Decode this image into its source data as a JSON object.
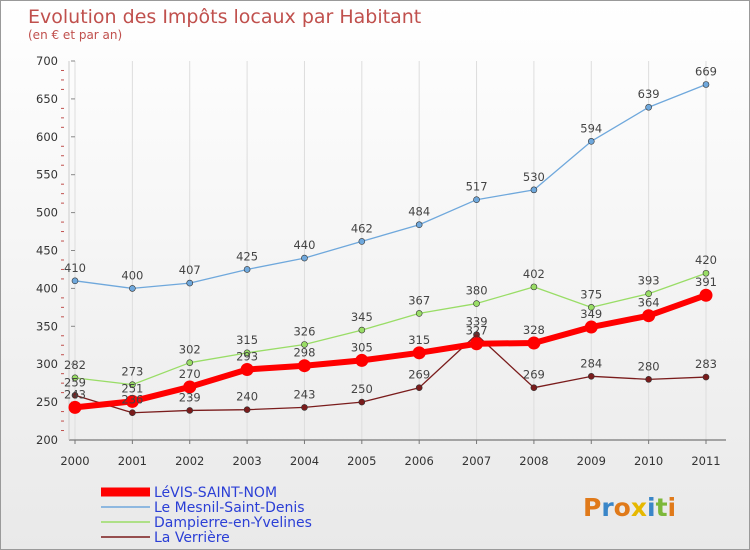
{
  "chart_data": {
    "type": "line",
    "title": "Evolution des Impôts locaux par Habitant",
    "subtitle": "(en € et par an)",
    "x": [
      "2000",
      "2001",
      "2002",
      "2003",
      "2004",
      "2005",
      "2006",
      "2007",
      "2008",
      "2009",
      "2010",
      "2011"
    ],
    "ylim": [
      200,
      700
    ],
    "yticks": [
      200,
      250,
      300,
      350,
      400,
      450,
      500,
      550,
      600,
      650,
      700
    ],
    "series": [
      {
        "name": "La Verrière",
        "color": "#7a1c1c",
        "values": [
          259,
          236,
          239,
          240,
          243,
          250,
          269,
          339,
          269,
          284,
          280,
          283
        ]
      },
      {
        "name": "Dampierre-en-Yvelines",
        "color": "#99dd66",
        "values": [
          282,
          273,
          302,
          315,
          326,
          345,
          367,
          380,
          402,
          375,
          393,
          420
        ]
      },
      {
        "name": "Le Mesnil-Saint-Denis",
        "color": "#6fa8dc",
        "values": [
          410,
          400,
          407,
          425,
          440,
          462,
          484,
          517,
          530,
          594,
          639,
          669
        ]
      },
      {
        "name": "LéVIS-SAINT-NOM",
        "color": "#ff0000",
        "values": [
          243,
          251,
          270,
          293,
          298,
          305,
          315,
          327,
          328,
          349,
          364,
          391
        ]
      }
    ],
    "legend": [
      "LéVIS-SAINT-NOM",
      "Le Mesnil-Saint-Denis",
      "Dampierre-en-Yvelines",
      "La Verrière"
    ],
    "legend_position": "bottom-left"
  },
  "logo": {
    "text": "Proxiti"
  }
}
